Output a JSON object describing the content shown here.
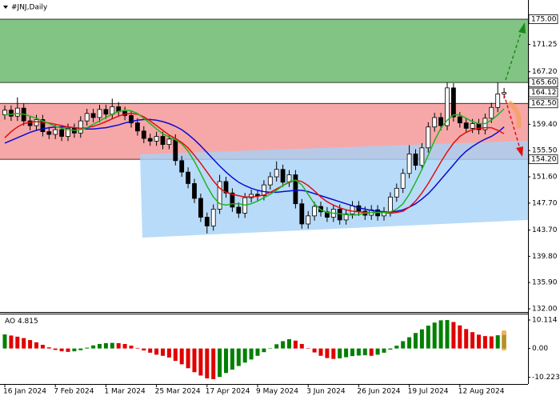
{
  "chart_data": {
    "type": "candlestick",
    "title": "#JNJ,Daily",
    "categories": [
      "16 Jan 2024",
      null,
      null,
      null,
      null,
      null,
      null,
      null,
      "7 Feb 2024",
      null,
      null,
      null,
      null,
      null,
      null,
      null,
      "1 Mar 2024",
      null,
      null,
      null,
      null,
      null,
      null,
      null,
      "25 Mar 2024",
      null,
      null,
      null,
      null,
      null,
      null,
      null,
      "17 Apr 2024",
      null,
      null,
      null,
      null,
      null,
      null,
      null,
      "9 May 2024",
      null,
      null,
      null,
      null,
      null,
      null,
      null,
      "3 Jun 2024",
      null,
      null,
      null,
      null,
      null,
      null,
      null,
      "26 Jun 2024",
      null,
      null,
      null,
      null,
      null,
      null,
      null,
      "19 Jul 2024",
      null,
      null,
      null,
      null,
      null,
      null,
      null,
      "12 Aug 2024",
      null,
      null,
      null,
      null,
      null,
      null,
      null
    ],
    "open": [
      160.8,
      161.5,
      160.6,
      161.8,
      159.9,
      159.2,
      160.1,
      158.3,
      157.9,
      158.6,
      157.6,
      158.8,
      158.1,
      159.9,
      161.0,
      160.4,
      161.6,
      160.9,
      162.0,
      161.3,
      160.7,
      159.6,
      158.4,
      157.3,
      156.9,
      157.6,
      156.4,
      157.2,
      154.0,
      152.3,
      150.6,
      148.4,
      145.6,
      144.3,
      146.8,
      150.9,
      149.2,
      147.1,
      146.2,
      148.5,
      149.0,
      148.8,
      150.4,
      151.6,
      152.7,
      150.8,
      151.9,
      147.6,
      144.6,
      145.8,
      147.2,
      146.4,
      145.6,
      146.8,
      145.2,
      146.1,
      147.3,
      146.5,
      145.9,
      146.7,
      145.8,
      146.4,
      148.6,
      149.9,
      152.1,
      155.0,
      153.3,
      155.9,
      159.0,
      160.4,
      159.2,
      164.8,
      160.5,
      159.6,
      158.8,
      159.5,
      158.6,
      160.3,
      161.9,
      163.9
    ],
    "high": [
      162.2,
      162.2,
      163.4,
      162.5,
      160.6,
      160.8,
      160.8,
      159.0,
      159.3,
      159.3,
      159.5,
      159.5,
      160.6,
      161.7,
      161.7,
      162.3,
      162.3,
      163.2,
      162.7,
      162.0,
      161.4,
      160.3,
      159.1,
      158.0,
      158.3,
      158.3,
      157.9,
      157.9,
      154.7,
      153.0,
      151.3,
      149.1,
      146.3,
      147.5,
      151.9,
      151.6,
      149.9,
      147.8,
      149.2,
      149.7,
      149.7,
      151.1,
      152.3,
      153.9,
      153.4,
      152.6,
      152.6,
      148.3,
      146.5,
      147.9,
      147.9,
      147.1,
      147.5,
      147.5,
      146.8,
      148.0,
      148.0,
      147.2,
      147.4,
      147.4,
      147.1,
      149.3,
      150.6,
      152.8,
      156.3,
      155.7,
      156.6,
      159.7,
      161.1,
      161.1,
      165.6,
      165.5,
      161.2,
      160.3,
      160.2,
      160.2,
      161.0,
      162.6,
      165.6,
      164.8
    ],
    "low": [
      160.1,
      159.9,
      159.9,
      159.2,
      158.5,
      158.5,
      157.6,
      157.2,
      157.2,
      156.9,
      156.9,
      157.4,
      157.4,
      159.2,
      159.7,
      159.7,
      160.2,
      160.2,
      160.6,
      160.0,
      158.9,
      157.7,
      156.6,
      156.2,
      156.2,
      155.7,
      155.7,
      153.3,
      151.6,
      149.9,
      147.7,
      144.9,
      143.2,
      143.6,
      146.1,
      148.5,
      146.4,
      145.5,
      145.5,
      147.8,
      148.1,
      148.1,
      149.7,
      150.9,
      150.1,
      150.1,
      146.9,
      143.9,
      143.9,
      145.1,
      145.7,
      144.9,
      144.9,
      144.5,
      144.5,
      145.4,
      145.8,
      145.2,
      145.2,
      145.1,
      145.1,
      145.7,
      147.9,
      149.2,
      151.4,
      152.6,
      152.6,
      155.2,
      158.3,
      158.5,
      158.5,
      159.8,
      158.9,
      158.1,
      158.1,
      157.9,
      157.9,
      159.6,
      161.2,
      163.2
    ],
    "close": [
      161.5,
      160.6,
      161.8,
      159.9,
      159.2,
      160.1,
      158.3,
      157.9,
      158.6,
      157.6,
      158.8,
      158.1,
      159.9,
      161.0,
      160.4,
      161.6,
      160.9,
      162.0,
      161.3,
      160.7,
      159.6,
      158.4,
      157.3,
      156.9,
      157.6,
      156.4,
      157.2,
      154.0,
      152.3,
      150.6,
      148.4,
      145.6,
      144.3,
      146.8,
      150.9,
      149.2,
      147.1,
      146.2,
      148.5,
      149.0,
      148.8,
      150.4,
      151.6,
      152.7,
      150.8,
      151.9,
      147.6,
      144.6,
      145.8,
      147.2,
      146.4,
      145.6,
      146.8,
      145.2,
      146.1,
      147.3,
      146.5,
      145.9,
      146.7,
      145.8,
      146.4,
      148.6,
      149.9,
      152.1,
      155.0,
      153.3,
      155.9,
      159.0,
      160.4,
      159.2,
      164.8,
      160.5,
      159.6,
      158.8,
      159.5,
      158.6,
      160.3,
      161.9,
      163.9,
      164.12
    ],
    "up_color": "#ffffff",
    "down_color": "#000000",
    "lines": [
      {
        "color": "#0b0bd0",
        "values": [
          156.6,
          157.0,
          157.4,
          157.8,
          158.2,
          158.5,
          158.7,
          158.9,
          159.0,
          159.0,
          159.0,
          158.9,
          158.8,
          158.7,
          158.7,
          158.8,
          158.9,
          159.1,
          159.3,
          159.6,
          159.8,
          160.0,
          160.1,
          160.1,
          160.0,
          159.8,
          159.5,
          159.1,
          158.6,
          157.9,
          157.1,
          156.2,
          155.2,
          154.2,
          153.2,
          152.3,
          151.5,
          150.8,
          150.3,
          149.9,
          149.6,
          149.4,
          149.3,
          149.3,
          149.4,
          149.5,
          149.6,
          149.6,
          149.4,
          149.1,
          148.8,
          148.5,
          148.2,
          147.9,
          147.6,
          147.3,
          147.0,
          146.8,
          146.6,
          146.5,
          146.4,
          146.4,
          146.5,
          146.7,
          147.1,
          147.6,
          148.3,
          149.1,
          150.1,
          151.2,
          152.3,
          153.4,
          154.5,
          155.4,
          156.1,
          156.7,
          157.2,
          157.6,
          158.2,
          159.0
        ]
      },
      {
        "color": "#e01010",
        "values": [
          157.4,
          158.3,
          159.0,
          159.5,
          159.7,
          159.8,
          159.7,
          159.6,
          159.4,
          159.2,
          159.0,
          158.9,
          158.8,
          158.9,
          159.1,
          159.4,
          159.8,
          160.2,
          160.6,
          160.9,
          161.0,
          160.9,
          160.5,
          159.9,
          159.2,
          158.5,
          157.8,
          157.3,
          156.7,
          155.9,
          154.8,
          153.6,
          152.3,
          151.0,
          149.9,
          149.3,
          149.0,
          148.8,
          148.6,
          148.6,
          148.7,
          148.9,
          149.3,
          149.8,
          150.3,
          150.8,
          151.1,
          150.9,
          150.3,
          149.5,
          148.6,
          147.9,
          147.4,
          147.0,
          146.7,
          146.5,
          146.4,
          146.3,
          146.3,
          146.3,
          146.3,
          146.2,
          146.3,
          146.5,
          147.1,
          148.0,
          149.2,
          150.6,
          152.2,
          153.8,
          155.3,
          156.6,
          157.6,
          158.2,
          158.6,
          158.8,
          158.9,
          158.9,
          158.5,
          158.0
        ]
      },
      {
        "color": "#1fb51f",
        "values": [
          160.8,
          160.9,
          161.0,
          160.9,
          160.6,
          160.3,
          159.9,
          159.5,
          159.1,
          158.8,
          158.6,
          158.5,
          158.6,
          158.9,
          159.4,
          159.9,
          160.4,
          160.9,
          161.3,
          161.5,
          161.4,
          161.0,
          160.3,
          159.5,
          158.7,
          158.0,
          157.5,
          157.1,
          156.5,
          155.4,
          153.9,
          152.1,
          150.2,
          148.6,
          147.6,
          147.4,
          147.6,
          147.6,
          147.4,
          147.6,
          148.0,
          148.5,
          149.0,
          149.6,
          150.3,
          150.9,
          151.1,
          150.4,
          149.0,
          147.6,
          146.7,
          146.3,
          146.2,
          146.1,
          146.0,
          145.9,
          146.0,
          146.2,
          146.3,
          146.3,
          146.3,
          146.4,
          146.8,
          147.6,
          149.0,
          150.8,
          152.7,
          154.8,
          157.0,
          158.8,
          160.0,
          160.8,
          160.8,
          160.3,
          159.8,
          159.5,
          159.5,
          160.0,
          160.8,
          161.7
        ]
      }
    ],
    "ylim": [
      131.53,
      177.85
    ],
    "yticks": [
      171.25,
      {
        "value": 167.2,
        "label": "167.20"
      },
      {
        "value": 159.4,
        "label": "159.40"
      },
      {
        "value": 155.5,
        "label": "155.50"
      },
      {
        "value": 151.6,
        "label": "151.60"
      },
      {
        "value": 147.7,
        "label": "147.70"
      },
      {
        "value": 143.7,
        "label": "143.70"
      },
      {
        "value": 139.8,
        "label": "139.80"
      },
      {
        "value": 135.9,
        "label": "135.90"
      },
      {
        "value": 132,
        "label": "132.00"
      }
    ],
    "zones": [
      {
        "from": 165.6,
        "to": 175,
        "color": "#82c484"
      },
      {
        "from": 154.2,
        "to": 162.5,
        "color": "#f6a8a8"
      }
    ],
    "price_labels": [
      {
        "value": 175,
        "label": "175.00"
      },
      {
        "value": 165.6,
        "label": "165.60"
      },
      {
        "value": 164.12,
        "label": "164.12"
      },
      {
        "value": 162.5,
        "label": "162.50"
      },
      {
        "value": 154.2,
        "label": "154.20"
      }
    ],
    "indicator": {
      "type": "bar",
      "name": "AO",
      "values": [
        5.0,
        4.6,
        4.2,
        3.7,
        3.0,
        2.2,
        1.3,
        0.4,
        -0.5,
        -1.0,
        -1.2,
        -1.0,
        -0.6,
        0.3,
        1.1,
        1.6,
        1.9,
        2.0,
        1.9,
        1.6,
        1.0,
        0.2,
        -0.7,
        -1.5,
        -2.2,
        -2.6,
        -3.2,
        -4.4,
        -5.6,
        -7.0,
        -8.4,
        -9.6,
        -10.6,
        -10.9,
        -10.1,
        -8.7,
        -7.5,
        -6.2,
        -5.0,
        -3.9,
        -2.6,
        -1.3,
        0.1,
        1.5,
        2.6,
        3.3,
        2.8,
        1.6,
        0.1,
        -1.4,
        -2.6,
        -3.4,
        -3.7,
        -3.5,
        -3.1,
        -2.7,
        -2.5,
        -2.4,
        -2.6,
        -2.2,
        -1.5,
        -0.4,
        1.0,
        2.6,
        4.0,
        5.5,
        6.8,
        8.1,
        9.2,
        10.0,
        10.1,
        9.4,
        8.2,
        6.9,
        5.8,
        4.9,
        4.4,
        4.3,
        4.7,
        4.815
      ],
      "up_color": "#008000",
      "down_color": "#e00000",
      "ylim": [
        -12.6,
        12.1
      ],
      "yticks": [
        10.114,
        {
          "value": 0,
          "label": "0.00"
        },
        -10.223
      ]
    }
  }
}
